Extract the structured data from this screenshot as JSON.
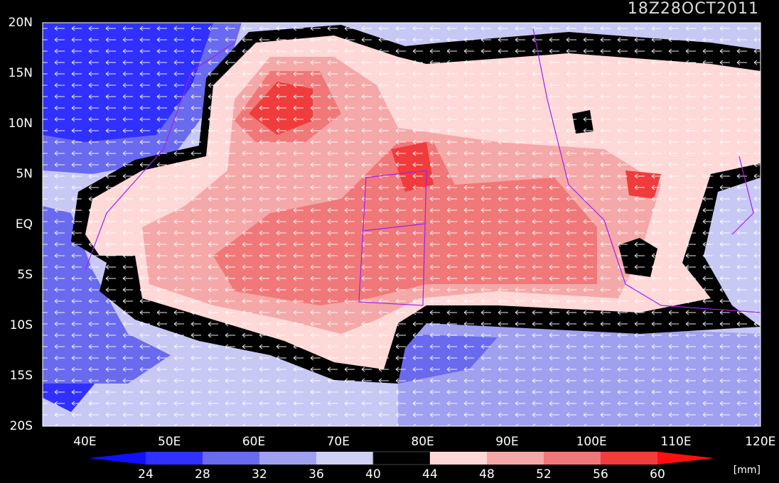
{
  "title": "18Z28OCT2011",
  "lat_labels": [
    "20N",
    "15N",
    "10N",
    "5N",
    "EQ",
    "5S",
    "10S",
    "15S",
    "20S"
  ],
  "lon_labels": [
    "40E",
    "50E",
    "60E",
    "70E",
    "80E",
    "90E",
    "100E",
    "110E",
    "120E"
  ],
  "colorbar": {
    "labels": [
      "24",
      "28",
      "32",
      "36",
      "40",
      "44",
      "48",
      "52",
      "56",
      "60"
    ],
    "unit": "[mm]"
  }
}
